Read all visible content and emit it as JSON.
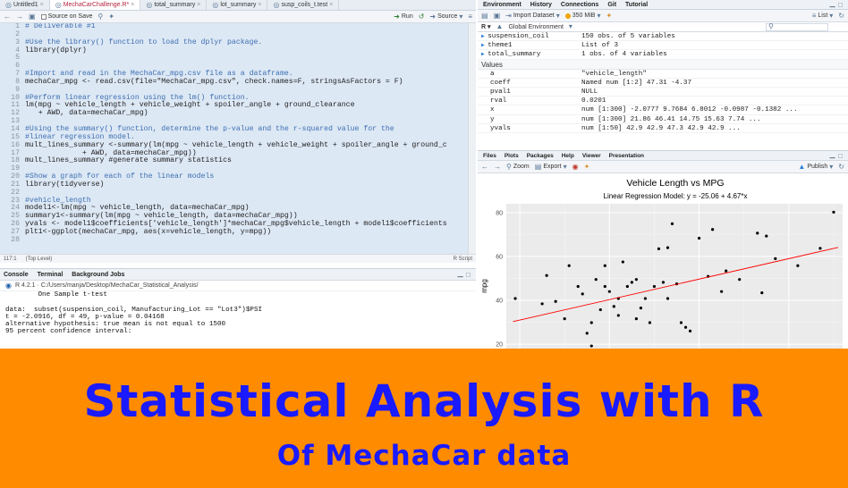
{
  "editor": {
    "tabs": [
      {
        "label": "Untitled1",
        "active": false
      },
      {
        "label": "MechaCarChallenge.R*",
        "active": true
      },
      {
        "label": "total_summary",
        "active": false
      },
      {
        "label": "lot_summary",
        "active": false
      },
      {
        "label": "susp_coils_t.test",
        "active": false
      }
    ],
    "toolbar": {
      "source_on_save": "Source on Save",
      "run": "Run",
      "source": "Source"
    },
    "lines": [
      {
        "n": "1",
        "text": "# Deliverable #1",
        "comment": true
      },
      {
        "n": "2",
        "text": "",
        "comment": false
      },
      {
        "n": "3",
        "text": "#Use the library() function to load the dplyr package.",
        "comment": true
      },
      {
        "n": "4",
        "text": "library(dplyr)",
        "comment": false
      },
      {
        "n": "5",
        "text": "",
        "comment": false
      },
      {
        "n": "6",
        "text": "",
        "comment": false
      },
      {
        "n": "7",
        "text": "#Import and read in the MechaCar_mpg.csv file as a dataframe.",
        "comment": true
      },
      {
        "n": "8",
        "text": "mechaCar_mpg <- read.csv(file=\"MechaCar_mpg.csv\", check.names=F, stringsAsFactors = F)",
        "comment": false
      },
      {
        "n": "9",
        "text": "",
        "comment": false
      },
      {
        "n": "10",
        "text": "#Perform linear regression using the lm() function.",
        "comment": true
      },
      {
        "n": "11",
        "text": "lm(mpg ~ vehicle_length + vehicle_weight + spoiler_angle + ground_clearance",
        "comment": false
      },
      {
        "n": "12",
        "text": "   + AWD, data=mechaCar_mpg)",
        "comment": false
      },
      {
        "n": "13",
        "text": "",
        "comment": false
      },
      {
        "n": "14",
        "text": "#Using the summary() function, determine the p-value and the r-squared value for the",
        "comment": true
      },
      {
        "n": "15",
        "text": "#linear regression model.",
        "comment": true
      },
      {
        "n": "16",
        "text": "mult_lines_summary <-summary(lm(mpg ~ vehicle_length + vehicle_weight + spoiler_angle + ground_c",
        "comment": false
      },
      {
        "n": "17",
        "text": "             + AWD, data=mechaCar_mpg))",
        "comment": false
      },
      {
        "n": "18",
        "text": "mult_lines_summary #generate summary statistics",
        "comment": false
      },
      {
        "n": "19",
        "text": "",
        "comment": false
      },
      {
        "n": "20",
        "text": "#Show a graph for each of the linear models",
        "comment": true
      },
      {
        "n": "21",
        "text": "library(tidyverse)",
        "comment": false
      },
      {
        "n": "22",
        "text": "",
        "comment": false
      },
      {
        "n": "23",
        "text": "#vehicle_length",
        "comment": true
      },
      {
        "n": "24",
        "text": "model1<-lm(mpg ~ vehicle_length, data=mechaCar_mpg)",
        "comment": false
      },
      {
        "n": "25",
        "text": "summary1<-summary(lm(mpg ~ vehicle_length, data=mechaCar_mpg))",
        "comment": false
      },
      {
        "n": "26",
        "text": "yvals <- model1$coefficients['vehicle_length']*mechaCar_mpg$vehicle_length + model1$coefficients",
        "comment": false
      },
      {
        "n": "27",
        "text": "plt1<-ggplot(mechaCar_mpg, aes(x=vehicle_length, y=mpg))",
        "comment": false
      },
      {
        "n": "28",
        "text": "",
        "comment": false
      }
    ],
    "status": {
      "position": "117:1",
      "scope": "(Top Level)",
      "filetype": "R Script"
    }
  },
  "console": {
    "tabs": [
      "Console",
      "Terminal",
      "Background Jobs"
    ],
    "path": "R 4.2.1 · C:/Users/manja/Desktop/MechaCar_Statistical_Analysis/",
    "lines": [
      "        One Sample t-test",
      "",
      "data:  subset(suspension_coil, Manufacturing_Lot == \"Lot3\")$PSI",
      "t = -2.0916, df = 49, p-value = 0.04168",
      "alternative hypothesis: true mean is not equal to 1500",
      "95 percent confidence interval:"
    ]
  },
  "environment": {
    "tabs": [
      "Environment",
      "History",
      "Connections",
      "Git",
      "Tutorial"
    ],
    "toolbar": {
      "import": "Import Dataset",
      "memory": "350 MiB",
      "view": "List",
      "scope": "Global Environment"
    },
    "data_rows": [
      {
        "name": "suspension_coil",
        "value": "150 obs. of 5 variables"
      },
      {
        "name": "theme1",
        "value": "List of 3"
      },
      {
        "name": "total_summary",
        "value": "1 obs. of 4 variables"
      }
    ],
    "values_header": "Values",
    "value_rows": [
      {
        "name": "a",
        "value": "\"vehicle_length\""
      },
      {
        "name": "coeff",
        "value": "Named num [1:2] 47.31 -4.37"
      },
      {
        "name": "pval1",
        "value": "NULL"
      },
      {
        "name": "rval",
        "value": "0.0201"
      },
      {
        "name": "x",
        "value": "num [1:300] -2.0777 9.7684 6.8012 -0.0987 -0.1382 ..."
      },
      {
        "name": "y",
        "value": "num [1:300] 21.86 46.41 14.75 15.63 7.74 ..."
      },
      {
        "name": "yvals",
        "value": "num [1:50] 42.9 42.9 47.3 42.9 42.9 ..."
      }
    ]
  },
  "plots": {
    "tabs": [
      "Files",
      "Plots",
      "Packages",
      "Help",
      "Viewer",
      "Presentation"
    ],
    "toolbar": {
      "zoom": "Zoom",
      "export": "Export",
      "publish": "Publish"
    }
  },
  "chart_data": {
    "type": "scatter",
    "title": "Vehicle Length vs MPG",
    "subtitle": "Linear Regression Model: y = -25.06 + 4.67*x",
    "xlabel": "",
    "ylabel": "mpg",
    "y_ticks": [
      "20",
      "40",
      "60",
      "80"
    ],
    "xlim": [
      11.7,
      19.2
    ],
    "ylim": [
      18,
      84
    ],
    "grid": true,
    "point_color": "#000000",
    "line_color": "#ff0000",
    "regression": {
      "intercept": -25.06,
      "slope": 4.67
    },
    "x": [
      11.9,
      12.5,
      12.6,
      12.8,
      13.0,
      13.1,
      13.3,
      13.4,
      13.5,
      13.6,
      13.6,
      13.7,
      13.8,
      13.9,
      13.9,
      14.0,
      14.1,
      14.2,
      14.2,
      14.3,
      14.4,
      14.5,
      14.6,
      14.6,
      14.7,
      14.8,
      14.9,
      15.0,
      15.1,
      15.2,
      15.3,
      15.3,
      15.4,
      15.5,
      15.6,
      15.7,
      15.8,
      16.0,
      16.2,
      16.3,
      16.5,
      16.6,
      16.9,
      17.3,
      17.4,
      17.5,
      17.7,
      18.2,
      18.7,
      19.0
    ],
    "y": [
      40.8,
      38.4,
      51.3,
      39.5,
      31.6,
      55.8,
      46.3,
      42.9,
      25.0,
      19.2,
      29.8,
      49.5,
      35.7,
      55.8,
      46.3,
      44.0,
      37.2,
      33.1,
      40.8,
      57.5,
      46.3,
      48.2,
      49.5,
      31.6,
      36.5,
      40.8,
      29.8,
      46.3,
      63.5,
      48.2,
      64.0,
      40.8,
      74.9,
      47.5,
      29.8,
      27.7,
      26.0,
      68.3,
      50.9,
      72.3,
      44.0,
      53.4,
      49.5,
      70.6,
      43.4,
      69.3,
      59.0,
      55.8,
      63.7,
      80.2
    ]
  },
  "banner": {
    "title": "Statistical Analysis with R",
    "subtitle": "Of MechaCar data",
    "bg": "#ff8c00",
    "fg": "#1a1aff"
  }
}
